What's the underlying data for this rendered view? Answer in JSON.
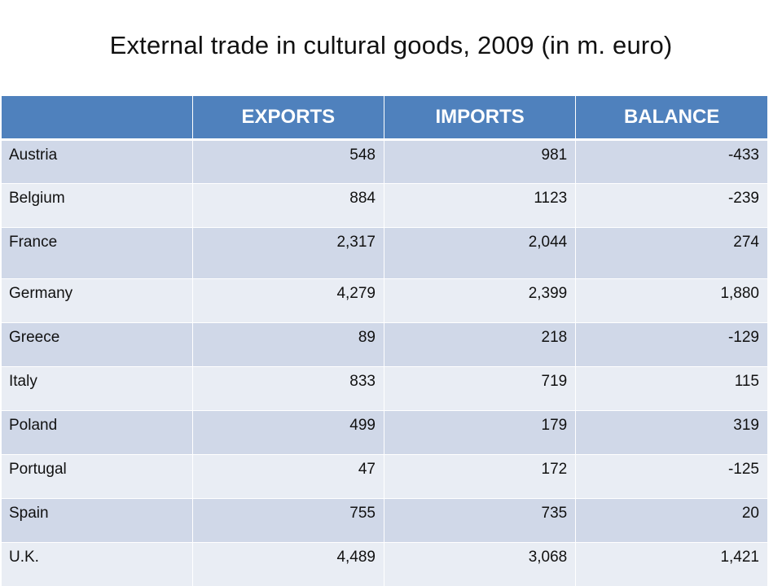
{
  "title": "External trade in cultural goods, 2009 (in m. euro)",
  "table": {
    "headers": [
      "",
      "EXPORTS",
      "IMPORTS",
      "BALANCE"
    ],
    "rows": [
      {
        "country": "Austria",
        "exports": "548",
        "imports": "981",
        "balance": "-433"
      },
      {
        "country": "Belgium",
        "exports": "884",
        "imports": "1123",
        "balance": "-239"
      },
      {
        "country": "France",
        "exports": "2,317",
        "imports": "2,044",
        "balance": "274"
      },
      {
        "country": "Germany",
        "exports": "4,279",
        "imports": "2,399",
        "balance": "1,880"
      },
      {
        "country": "Greece",
        "exports": "89",
        "imports": "218",
        "balance": "-129"
      },
      {
        "country": "Italy",
        "exports": "833",
        "imports": "719",
        "balance": "115"
      },
      {
        "country": "Poland",
        "exports": "499",
        "imports": "179",
        "balance": "319"
      },
      {
        "country": "Portugal",
        "exports": "47",
        "imports": "172",
        "balance": "-125"
      },
      {
        "country": "Spain",
        "exports": "755",
        "imports": "735",
        "balance": "20"
      },
      {
        "country": "U.K.",
        "exports": "4,489",
        "imports": "3,068",
        "balance": "1,421"
      }
    ]
  }
}
